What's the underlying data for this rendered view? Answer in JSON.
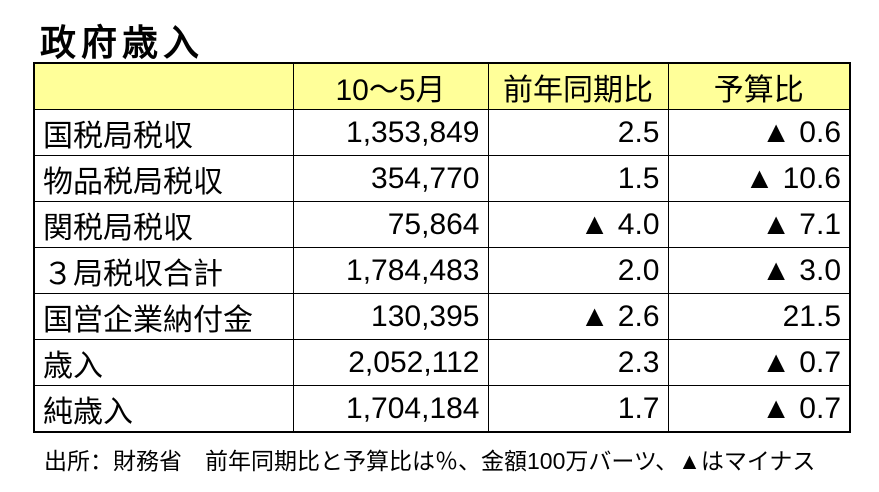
{
  "page": {
    "title": "政府歳入",
    "source_note": "出所：財務省　前年同期比と予算比は％、金額100万バーツ、▲はマイナス"
  },
  "colors": {
    "header_bg": "#ffff99",
    "border": "#000000",
    "text": "#000000",
    "background": "#ffffff"
  },
  "table": {
    "columns": [
      "",
      "10〜5月",
      "前年同期比",
      "予算比"
    ],
    "rows": [
      {
        "label": "国税局税収",
        "amount": "1,353,849",
        "yoy": "2.5",
        "vs_budget": "▲ 0.6"
      },
      {
        "label": "物品税局税収",
        "amount": "354,770",
        "yoy": "1.5",
        "vs_budget": "▲ 10.6"
      },
      {
        "label": "関税局税収",
        "amount": "75,864",
        "yoy": "▲ 4.0",
        "vs_budget": "▲ 7.1"
      },
      {
        "label": "３局税収合計",
        "amount": "1,784,483",
        "yoy": "2.0",
        "vs_budget": "▲ 3.0"
      },
      {
        "label": "国営企業納付金",
        "amount": "130,395",
        "yoy": "▲ 2.6",
        "vs_budget": "21.5"
      },
      {
        "label": "歳入",
        "amount": "2,052,112",
        "yoy": "2.3",
        "vs_budget": "▲ 0.7"
      },
      {
        "label": "純歳入",
        "amount": "1,704,184",
        "yoy": "1.7",
        "vs_budget": "▲ 0.7"
      }
    ],
    "units_note": "金額100万バーツ、▲はマイナス、比率は％"
  }
}
